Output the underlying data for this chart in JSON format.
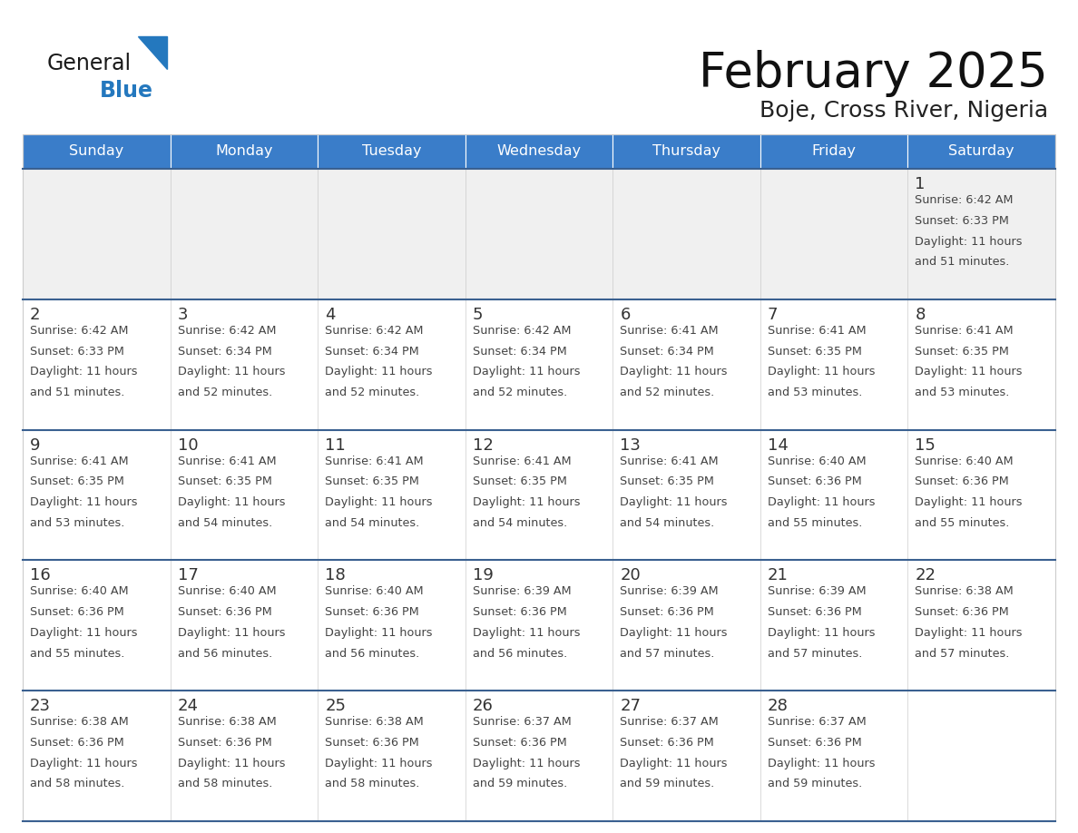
{
  "title": "February 2025",
  "subtitle": "Boje, Cross River, Nigeria",
  "days_of_week": [
    "Sunday",
    "Monday",
    "Tuesday",
    "Wednesday",
    "Thursday",
    "Friday",
    "Saturday"
  ],
  "header_bg": "#3A7DC9",
  "header_text": "#FFFFFF",
  "cell_bg_light": "#F0F0F0",
  "cell_bg_white": "#FFFFFF",
  "row_border_color": "#3A6090",
  "cell_border_color": "#CCCCCC",
  "day_num_color": "#333333",
  "text_color": "#444444",
  "title_color": "#111111",
  "subtitle_color": "#222222",
  "logo_black": "#1A1A1A",
  "logo_blue": "#2478BE",
  "logo_triangle": "#2478BE",
  "weeks": [
    [
      {
        "day": null,
        "sunrise": null,
        "sunset": null,
        "daylight": null
      },
      {
        "day": null,
        "sunrise": null,
        "sunset": null,
        "daylight": null
      },
      {
        "day": null,
        "sunrise": null,
        "sunset": null,
        "daylight": null
      },
      {
        "day": null,
        "sunrise": null,
        "sunset": null,
        "daylight": null
      },
      {
        "day": null,
        "sunrise": null,
        "sunset": null,
        "daylight": null
      },
      {
        "day": null,
        "sunrise": null,
        "sunset": null,
        "daylight": null
      },
      {
        "day": 1,
        "sunrise": "6:42 AM",
        "sunset": "6:33 PM",
        "daylight": "11 hours and 51 minutes."
      }
    ],
    [
      {
        "day": 2,
        "sunrise": "6:42 AM",
        "sunset": "6:33 PM",
        "daylight": "11 hours and 51 minutes."
      },
      {
        "day": 3,
        "sunrise": "6:42 AM",
        "sunset": "6:34 PM",
        "daylight": "11 hours and 52 minutes."
      },
      {
        "day": 4,
        "sunrise": "6:42 AM",
        "sunset": "6:34 PM",
        "daylight": "11 hours and 52 minutes."
      },
      {
        "day": 5,
        "sunrise": "6:42 AM",
        "sunset": "6:34 PM",
        "daylight": "11 hours and 52 minutes."
      },
      {
        "day": 6,
        "sunrise": "6:41 AM",
        "sunset": "6:34 PM",
        "daylight": "11 hours and 52 minutes."
      },
      {
        "day": 7,
        "sunrise": "6:41 AM",
        "sunset": "6:35 PM",
        "daylight": "11 hours and 53 minutes."
      },
      {
        "day": 8,
        "sunrise": "6:41 AM",
        "sunset": "6:35 PM",
        "daylight": "11 hours and 53 minutes."
      }
    ],
    [
      {
        "day": 9,
        "sunrise": "6:41 AM",
        "sunset": "6:35 PM",
        "daylight": "11 hours and 53 minutes."
      },
      {
        "day": 10,
        "sunrise": "6:41 AM",
        "sunset": "6:35 PM",
        "daylight": "11 hours and 54 minutes."
      },
      {
        "day": 11,
        "sunrise": "6:41 AM",
        "sunset": "6:35 PM",
        "daylight": "11 hours and 54 minutes."
      },
      {
        "day": 12,
        "sunrise": "6:41 AM",
        "sunset": "6:35 PM",
        "daylight": "11 hours and 54 minutes."
      },
      {
        "day": 13,
        "sunrise": "6:41 AM",
        "sunset": "6:35 PM",
        "daylight": "11 hours and 54 minutes."
      },
      {
        "day": 14,
        "sunrise": "6:40 AM",
        "sunset": "6:36 PM",
        "daylight": "11 hours and 55 minutes."
      },
      {
        "day": 15,
        "sunrise": "6:40 AM",
        "sunset": "6:36 PM",
        "daylight": "11 hours and 55 minutes."
      }
    ],
    [
      {
        "day": 16,
        "sunrise": "6:40 AM",
        "sunset": "6:36 PM",
        "daylight": "11 hours and 55 minutes."
      },
      {
        "day": 17,
        "sunrise": "6:40 AM",
        "sunset": "6:36 PM",
        "daylight": "11 hours and 56 minutes."
      },
      {
        "day": 18,
        "sunrise": "6:40 AM",
        "sunset": "6:36 PM",
        "daylight": "11 hours and 56 minutes."
      },
      {
        "day": 19,
        "sunrise": "6:39 AM",
        "sunset": "6:36 PM",
        "daylight": "11 hours and 56 minutes."
      },
      {
        "day": 20,
        "sunrise": "6:39 AM",
        "sunset": "6:36 PM",
        "daylight": "11 hours and 57 minutes."
      },
      {
        "day": 21,
        "sunrise": "6:39 AM",
        "sunset": "6:36 PM",
        "daylight": "11 hours and 57 minutes."
      },
      {
        "day": 22,
        "sunrise": "6:38 AM",
        "sunset": "6:36 PM",
        "daylight": "11 hours and 57 minutes."
      }
    ],
    [
      {
        "day": 23,
        "sunrise": "6:38 AM",
        "sunset": "6:36 PM",
        "daylight": "11 hours and 58 minutes."
      },
      {
        "day": 24,
        "sunrise": "6:38 AM",
        "sunset": "6:36 PM",
        "daylight": "11 hours and 58 minutes."
      },
      {
        "day": 25,
        "sunrise": "6:38 AM",
        "sunset": "6:36 PM",
        "daylight": "11 hours and 58 minutes."
      },
      {
        "day": 26,
        "sunrise": "6:37 AM",
        "sunset": "6:36 PM",
        "daylight": "11 hours and 59 minutes."
      },
      {
        "day": 27,
        "sunrise": "6:37 AM",
        "sunset": "6:36 PM",
        "daylight": "11 hours and 59 minutes."
      },
      {
        "day": 28,
        "sunrise": "6:37 AM",
        "sunset": "6:36 PM",
        "daylight": "11 hours and 59 minutes."
      },
      {
        "day": null,
        "sunrise": null,
        "sunset": null,
        "daylight": null
      }
    ]
  ]
}
